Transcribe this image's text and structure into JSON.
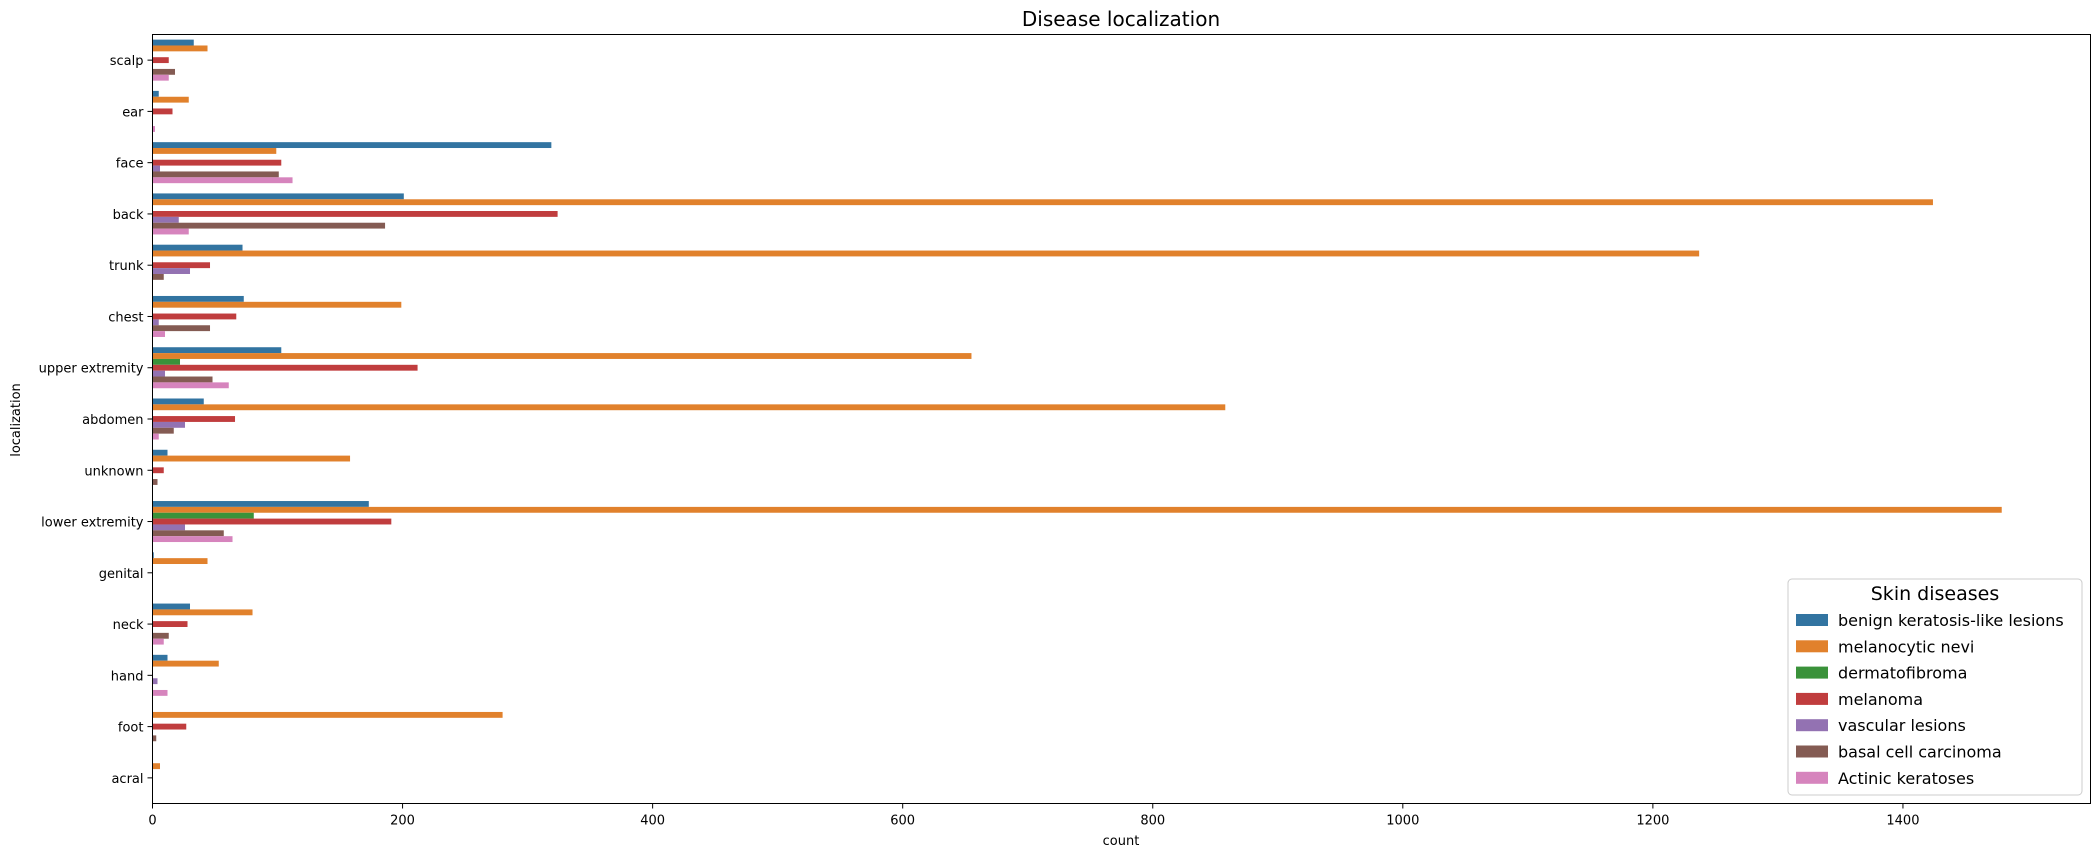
{
  "chart_data": {
    "type": "bar",
    "orientation": "horizontal",
    "title": "Disease localization",
    "xlabel": "count",
    "ylabel": "localization",
    "xlim": [
      0,
      1550
    ],
    "xticks": [
      0,
      200,
      400,
      600,
      800,
      1000,
      1200,
      1400
    ],
    "grid": false,
    "legend": {
      "title": "Skin diseases",
      "position": "lower-right"
    },
    "categories": [
      "scalp",
      "ear",
      "face",
      "back",
      "trunk",
      "chest",
      "upper extremity",
      "abdomen",
      "unknown",
      "lower extremity",
      "genital",
      "neck",
      "hand",
      "foot",
      "acral"
    ],
    "series": [
      {
        "name": "benign keratosis-like lesions",
        "color": "#3274a1",
        "values": [
          33,
          5,
          319,
          201,
          72,
          73,
          103,
          41,
          12,
          173,
          1,
          30,
          12,
          0,
          0
        ]
      },
      {
        "name": "melanocytic nevi",
        "color": "#e1812c",
        "values": [
          44,
          29,
          99,
          1424,
          1237,
          199,
          655,
          858,
          158,
          1479,
          44,
          80,
          53,
          280,
          6
        ]
      },
      {
        "name": "dermatofibroma",
        "color": "#3a923a",
        "values": [
          0,
          0,
          0,
          0,
          0,
          0,
          22,
          0,
          0,
          81,
          0,
          0,
          0,
          0,
          0
        ]
      },
      {
        "name": "melanoma",
        "color": "#c03d3e",
        "values": [
          13,
          16,
          103,
          324,
          46,
          67,
          212,
          66,
          9,
          191,
          0,
          28,
          0,
          27,
          0
        ]
      },
      {
        "name": "vascular lesions",
        "color": "#9372b2",
        "values": [
          0,
          0,
          6,
          21,
          30,
          5,
          10,
          26,
          0,
          26,
          0,
          0,
          4,
          0,
          0
        ]
      },
      {
        "name": "basal cell carcinoma",
        "color": "#845b53",
        "values": [
          18,
          0,
          101,
          186,
          9,
          46,
          48,
          17,
          4,
          57,
          0,
          13,
          0,
          3,
          0
        ]
      },
      {
        "name": "Actinic keratoses",
        "color": "#d684bd",
        "values": [
          13,
          2,
          112,
          29,
          0,
          10,
          61,
          5,
          0,
          64,
          0,
          9,
          12,
          0,
          0
        ]
      }
    ]
  }
}
